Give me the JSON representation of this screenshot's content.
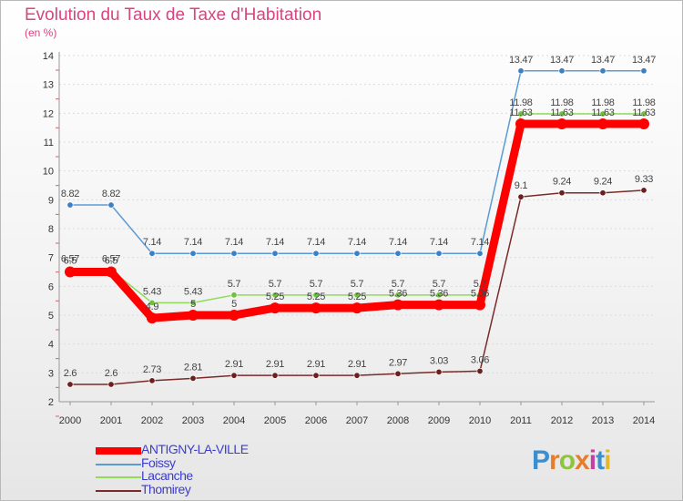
{
  "header": {
    "title": "Evolution du Taux de Taxe d'Habitation",
    "subtitle": "(en %)"
  },
  "brand": {
    "letters": [
      "P",
      "r",
      "o",
      "x",
      "i",
      "t",
      "i"
    ],
    "colors": [
      "#3a8fd1",
      "#e77c2b",
      "#8fc43f",
      "#e77c2b",
      "#c43fa0",
      "#3a8fd1",
      "#e7b72b"
    ]
  },
  "chart_data": {
    "type": "line",
    "title": "Evolution du Taux de Taxe d'Habitation",
    "ylabel": "(en %)",
    "xlabel": "",
    "ylim": [
      2,
      14
    ],
    "yticks": [
      2,
      3,
      4,
      5,
      6,
      7,
      8,
      9,
      10,
      11,
      12,
      13,
      14
    ],
    "categories": [
      "2000",
      "2001",
      "2002",
      "2003",
      "2004",
      "2005",
      "2006",
      "2007",
      "2008",
      "2009",
      "2010",
      "2011",
      "2012",
      "2013",
      "2014"
    ],
    "series": [
      {
        "name": "Foissy",
        "color": "#5b9bd5",
        "marker": "#3b7fc4",
        "values": [
          8.82,
          8.82,
          7.14,
          7.14,
          7.14,
          7.14,
          7.14,
          7.14,
          7.14,
          7.14,
          7.14,
          13.47,
          13.47,
          13.47,
          13.47
        ],
        "labels": [
          "8.82",
          "8.82",
          "7.14",
          "7.14",
          "7.14",
          "7.14",
          "7.14",
          "7.14",
          "7.14",
          "7.14",
          "7.14",
          "13.47",
          "13.47",
          "13.47",
          "13.47"
        ]
      },
      {
        "name": "Lacanche",
        "color": "#8fdc5a",
        "marker": "#6cc33a",
        "values": [
          6.57,
          6.57,
          5.43,
          5.43,
          5.7,
          5.7,
          5.7,
          5.7,
          5.7,
          5.7,
          5.7,
          11.98,
          11.98,
          11.98,
          11.98
        ],
        "labels": [
          "6.57",
          "6.57",
          "5.43",
          "5.43",
          "5.7",
          "5.7",
          "5.7",
          "5.7",
          "5.7",
          "5.7",
          "5.7",
          "11.98",
          "11.98",
          "11.98",
          "11.98"
        ]
      },
      {
        "name": "ANTIGNY-LA-VILLE",
        "color": "#ff0000",
        "marker": "#ff0000",
        "values": [
          6.5,
          6.5,
          4.9,
          5.0,
          5.0,
          5.25,
          5.25,
          5.25,
          5.36,
          5.36,
          5.36,
          11.63,
          11.63,
          11.63,
          11.63
        ],
        "labels": [
          "6.5",
          "6.5",
          "4.9",
          "5",
          "5",
          "5.25",
          "5.25",
          "5.25",
          "5.36",
          "5.36",
          "5.36",
          "11.63",
          "11.63",
          "11.63",
          "11.63"
        ]
      },
      {
        "name": "Thomirey",
        "color": "#7b2a2a",
        "marker": "#6b1f1f",
        "values": [
          2.6,
          2.6,
          2.73,
          2.81,
          2.91,
          2.91,
          2.91,
          2.91,
          2.97,
          3.03,
          3.06,
          9.1,
          9.24,
          9.24,
          9.33
        ],
        "labels": [
          "2.6",
          "2.6",
          "2.73",
          "2.81",
          "2.91",
          "2.91",
          "2.91",
          "2.91",
          "2.97",
          "3.03",
          "3.06",
          "9.1",
          "9.24",
          "9.24",
          "9.33"
        ]
      }
    ],
    "legend": [
      {
        "name": "ANTIGNY-LA-VILLE",
        "color": "#ff0000",
        "thick": true
      },
      {
        "name": "Foissy",
        "color": "#5b9bd5",
        "thick": false
      },
      {
        "name": "Lacanche",
        "color": "#8fdc5a",
        "thick": false
      },
      {
        "name": "Thomirey",
        "color": "#7b2a2a",
        "thick": false
      }
    ],
    "legend_position": "bottom-left"
  }
}
